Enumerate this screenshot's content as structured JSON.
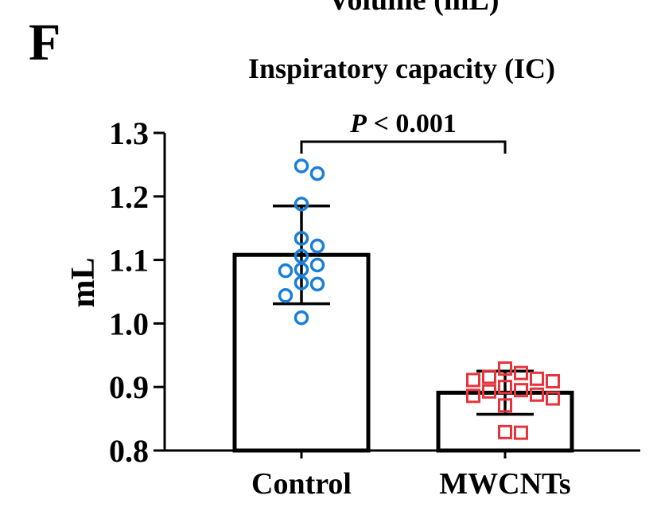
{
  "chart_data": {
    "type": "bar",
    "panel_label": "F",
    "clipped_header": "Volume (mL)",
    "title": "Inspiratory capacity (IC)",
    "ylabel": "mL",
    "xlabel": "",
    "ylim": [
      0.8,
      1.3
    ],
    "yticks": [
      "0.8",
      "0.9",
      "1.0",
      "1.1",
      "1.2",
      "1.3"
    ],
    "categories": [
      "Control",
      "MWCNTs"
    ],
    "means": [
      1.108,
      0.891
    ],
    "sd": [
      0.077,
      0.034
    ],
    "significance": {
      "p_symbol": "P",
      "p_text": "< 0.001",
      "between": [
        0,
        1
      ]
    },
    "points": [
      {
        "group": "Control",
        "marker": "circle",
        "color": "#1a7fd6",
        "values": [
          1.248,
          1.236,
          1.188,
          1.134,
          1.122,
          1.106,
          1.092,
          1.085,
          1.083,
          1.064,
          1.062,
          1.044,
          1.009
        ]
      },
      {
        "group": "MWCNTs",
        "marker": "square",
        "color": "#e8333a",
        "values": [
          0.929,
          0.922,
          0.916,
          0.913,
          0.911,
          0.909,
          0.9,
          0.895,
          0.893,
          0.888,
          0.886,
          0.882,
          0.871,
          0.829,
          0.828
        ]
      }
    ]
  }
}
